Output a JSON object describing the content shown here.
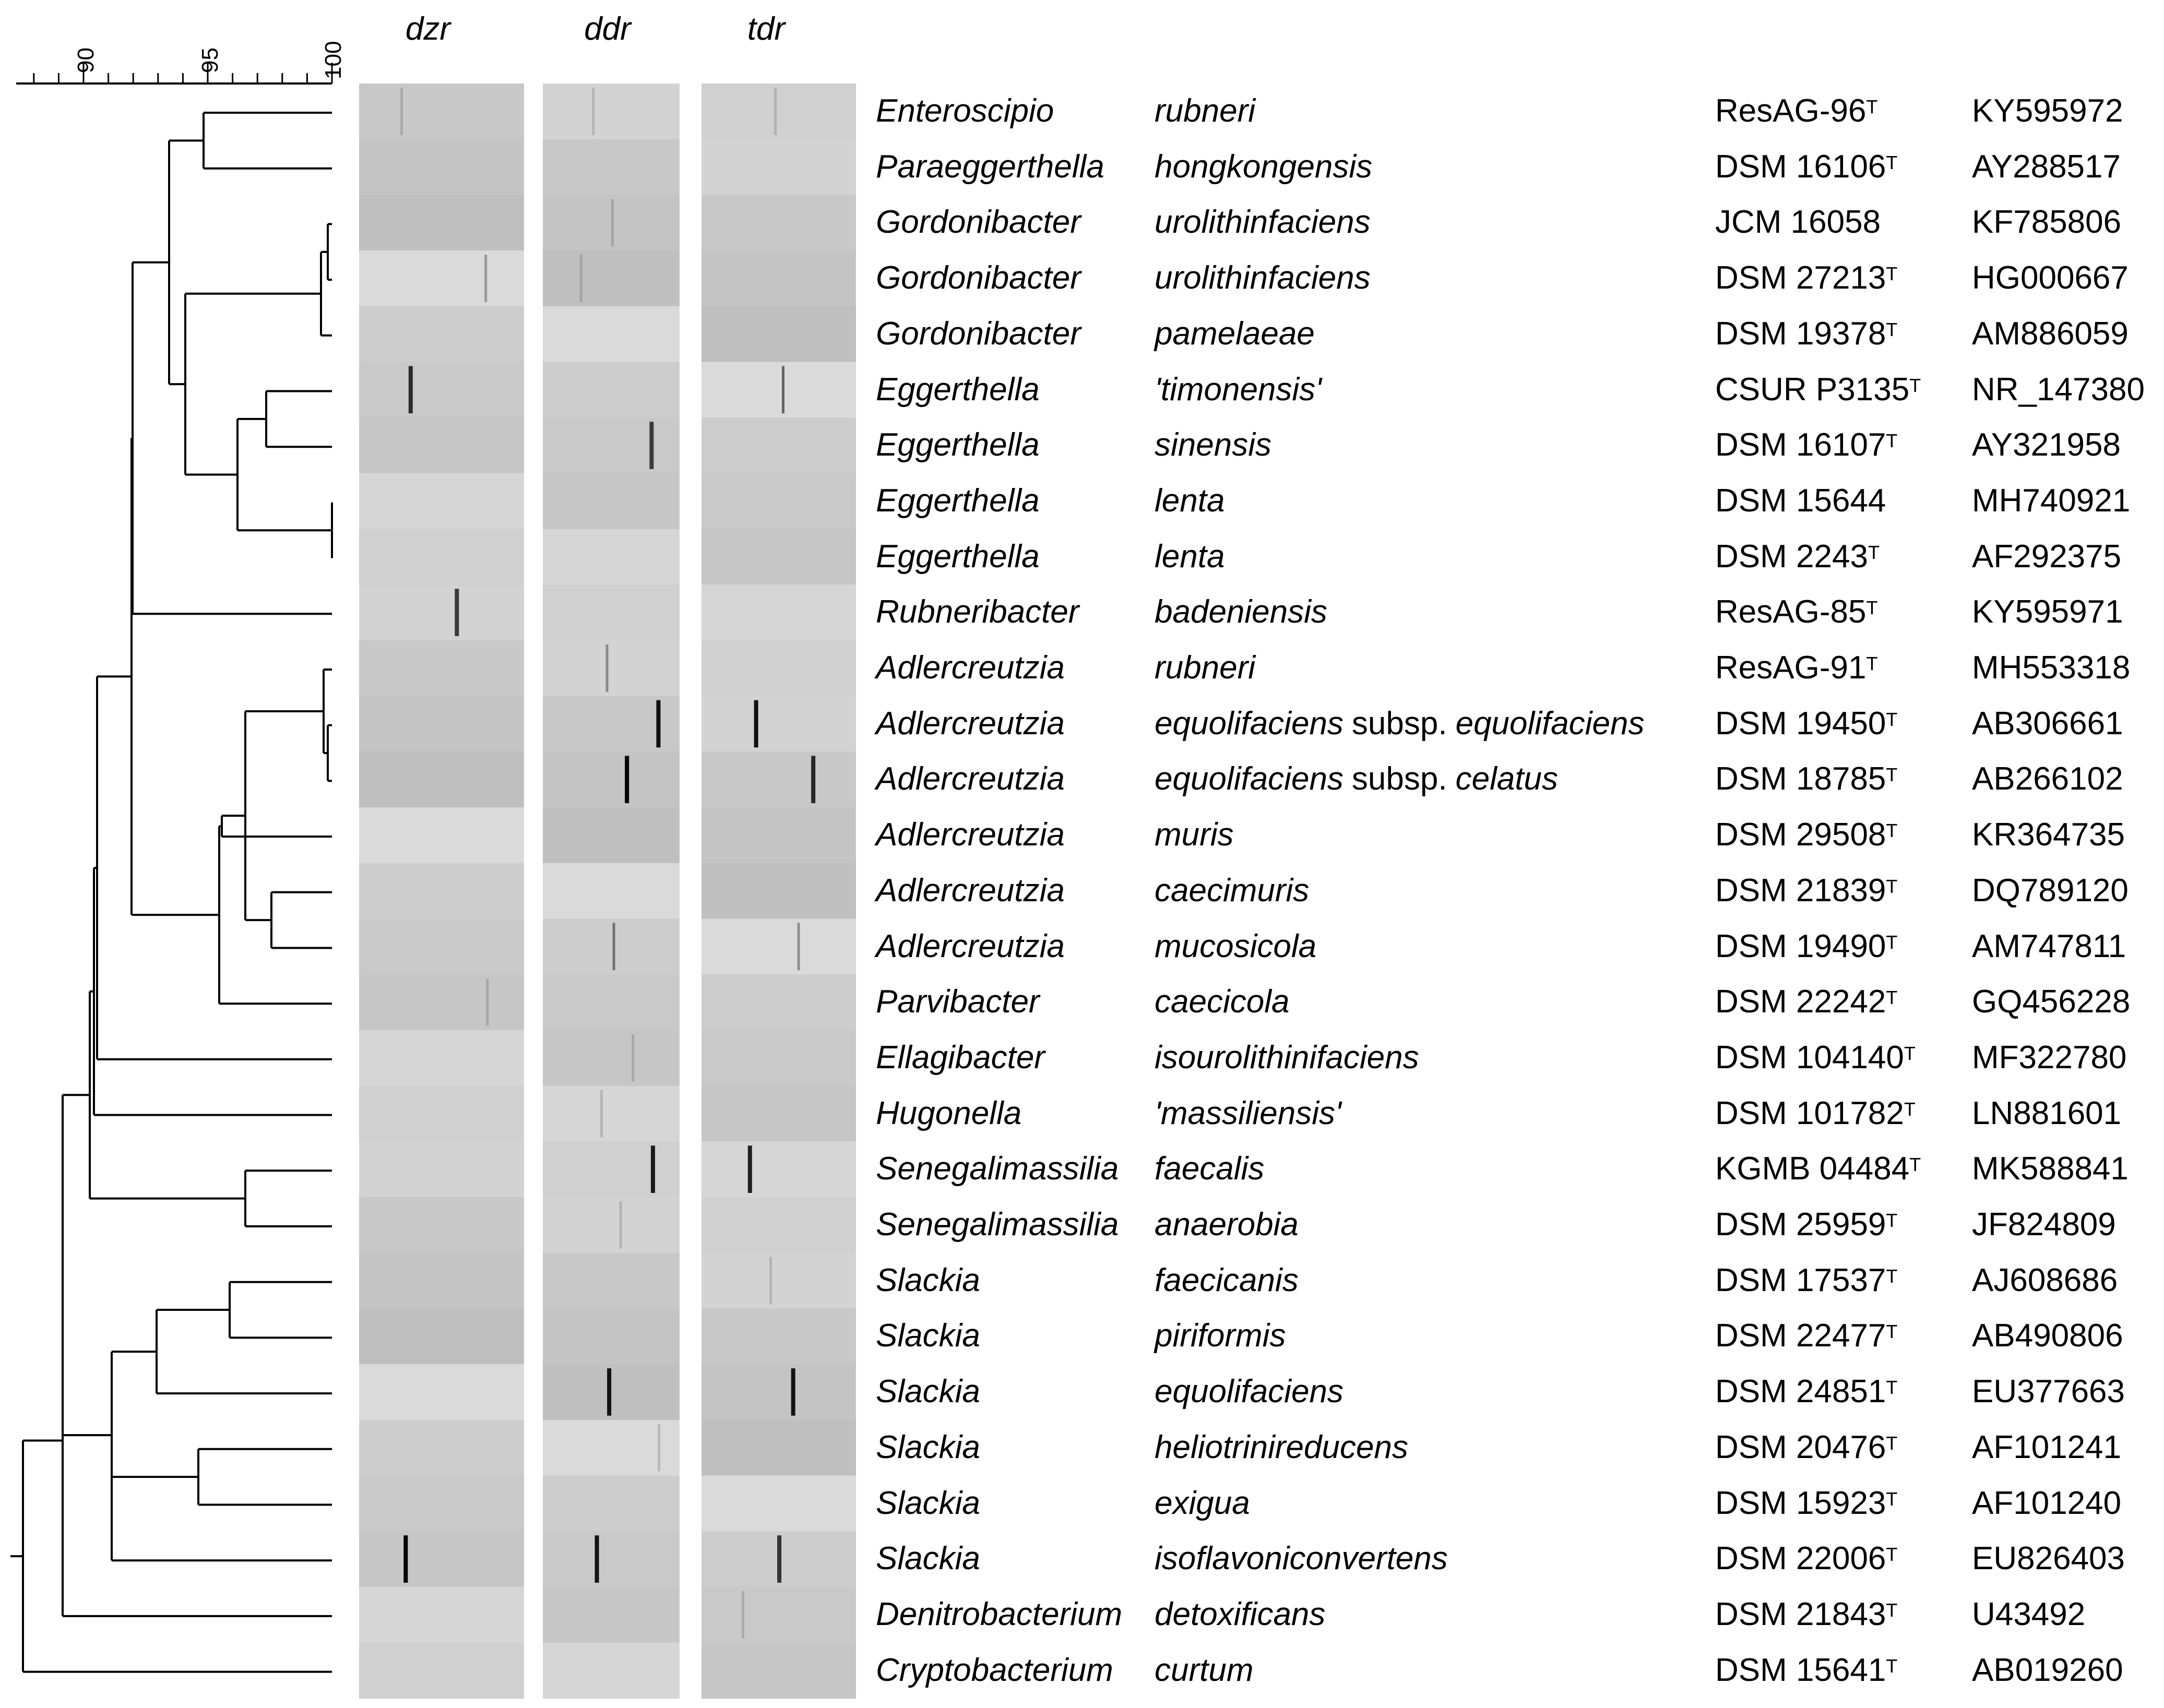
{
  "scale": {
    "ticks": [
      "90",
      "95",
      "100"
    ],
    "range": [
      87.5,
      100
    ]
  },
  "genes": {
    "dzr": "dzr",
    "ddr": "ddr",
    "tdr": "tdr"
  },
  "colors": {
    "line": "#000000",
    "band": "#000000"
  },
  "taxa": [
    {
      "genus": "Enteroscipio",
      "species": "rubneri",
      "subsp_label": "",
      "subsp": "",
      "strain": "ResAG-96",
      "type": "T",
      "acc": "KY595972",
      "dzr": 0.06,
      "ddr": 0.08,
      "tdr": 0.12
    },
    {
      "genus": "Paraeggerthella",
      "species": "hongkongensis",
      "subsp_label": "",
      "subsp": "",
      "strain": "DSM 16106",
      "type": "T",
      "acc": "AY288517",
      "dzr": 0,
      "ddr": 0,
      "tdr": 0
    },
    {
      "genus": "Gordonibacter",
      "species": "urolithinfaciens",
      "subsp_label": "",
      "subsp": "",
      "strain": "JCM 16058",
      "type": "",
      "acc": "KF785806",
      "dzr": 0,
      "ddr": 0.08,
      "tdr": 0
    },
    {
      "genus": "Gordonibacter",
      "species": "urolithinfaciens",
      "subsp_label": "",
      "subsp": "",
      "strain": "DSM 27213",
      "type": "T",
      "acc": "HG000667",
      "dzr": 0.3,
      "ddr": 0.1,
      "tdr": 0
    },
    {
      "genus": "Gordonibacter",
      "species": "pamelaeae",
      "subsp_label": "",
      "subsp": "",
      "strain": "DSM 19378",
      "type": "T",
      "acc": "AM886059",
      "dzr": 0,
      "ddr": 0,
      "tdr": 0
    },
    {
      "genus": "Eggerthella",
      "species": "'timonensis'",
      "subsp_label": "",
      "subsp": "",
      "strain": "CSUR P3135",
      "type": "T",
      "acc": "NR_147380",
      "dzr": 0.78,
      "ddr": 0,
      "tdr": 0.55
    },
    {
      "genus": "Eggerthella",
      "species": "sinensis",
      "subsp_label": "",
      "subsp": "",
      "strain": "DSM 16107",
      "type": "T",
      "acc": "AY321958",
      "dzr": 0,
      "ddr": 0.7,
      "tdr": 0
    },
    {
      "genus": "Eggerthella",
      "species": "lenta",
      "subsp_label": "",
      "subsp": "",
      "strain": "DSM 15644",
      "type": "",
      "acc": "MH740921",
      "dzr": 0,
      "ddr": 0,
      "tdr": 0
    },
    {
      "genus": "Eggerthella",
      "species": "lenta",
      "subsp_label": "",
      "subsp": "",
      "strain": "DSM 2243",
      "type": "T",
      "acc": "AF292375",
      "dzr": 0,
      "ddr": 0,
      "tdr": 0
    },
    {
      "genus": "Rubneribacter",
      "species": "badeniensis",
      "subsp_label": "",
      "subsp": "",
      "strain": "ResAG-85",
      "type": "T",
      "acc": "KY595971",
      "dzr": 0.72,
      "ddr": 0,
      "tdr": 0
    },
    {
      "genus": "Adlercreutzia",
      "species": "rubneri",
      "subsp_label": "",
      "subsp": "",
      "strain": "ResAG-91",
      "type": "T",
      "acc": "MH553318",
      "dzr": 0,
      "ddr": 0.35,
      "tdr": 0
    },
    {
      "genus": "Adlercreutzia",
      "species": "equolifaciens",
      "subsp_label": "subsp.",
      "subsp": "equolifaciens",
      "strain": "DSM 19450",
      "type": "T",
      "acc": "AB306661",
      "dzr": 0,
      "ddr": 0.92,
      "tdr": 0.92
    },
    {
      "genus": "Adlercreutzia",
      "species": "equolifaciens",
      "subsp_label": "subsp.",
      "subsp": "celatus",
      "strain": "DSM 18785",
      "type": "T",
      "acc": "AB266102",
      "dzr": 0,
      "ddr": 0.98,
      "tdr": 0.8
    },
    {
      "genus": "Adlercreutzia",
      "species": "muris",
      "subsp_label": "",
      "subsp": "",
      "strain": "DSM 29508",
      "type": "T",
      "acc": "KR364735",
      "dzr": 0,
      "ddr": 0,
      "tdr": 0
    },
    {
      "genus": "Adlercreutzia",
      "species": "caecimuris",
      "subsp_label": "",
      "subsp": "",
      "strain": "DSM 21839",
      "type": "T",
      "acc": "DQ789120",
      "dzr": 0,
      "ddr": 0,
      "tdr": 0
    },
    {
      "genus": "Adlercreutzia",
      "species": "mucosicola",
      "subsp_label": "",
      "subsp": "",
      "strain": "DSM 19490",
      "type": "T",
      "acc": "AM747811",
      "dzr": 0,
      "ddr": 0.45,
      "tdr": 0.35
    },
    {
      "genus": "Parvibacter",
      "species": "caecicola",
      "subsp_label": "",
      "subsp": "",
      "strain": "DSM 22242",
      "type": "T",
      "acc": "GQ456228",
      "dzr": 0.1,
      "ddr": 0,
      "tdr": 0
    },
    {
      "genus": "Ellagibacter",
      "species": "isourolithinifaciens",
      "subsp_label": "",
      "subsp": "",
      "strain": "DSM 104140",
      "type": "T",
      "acc": "MF322780",
      "dzr": 0,
      "ddr": 0.12,
      "tdr": 0
    },
    {
      "genus": "Hugonella",
      "species": "'massiliensis'",
      "subsp_label": "",
      "subsp": "",
      "strain": "DSM 101782",
      "type": "T",
      "acc": "LN881601",
      "dzr": 0,
      "ddr": 0.12,
      "tdr": 0
    },
    {
      "genus": "Senegalimassilia",
      "species": "faecalis",
      "subsp_label": "",
      "subsp": "",
      "strain": "KGMB 04484",
      "type": "T",
      "acc": "MK588841",
      "dzr": 0,
      "ddr": 0.88,
      "tdr": 0.85
    },
    {
      "genus": "Senegalimassilia",
      "species": "anaerobia",
      "subsp_label": "",
      "subsp": "",
      "strain": "DSM 25959",
      "type": "T",
      "acc": "JF824809",
      "dzr": 0,
      "ddr": 0.1,
      "tdr": 0
    },
    {
      "genus": "Slackia",
      "species": "faecicanis",
      "subsp_label": "",
      "subsp": "",
      "strain": "DSM 17537",
      "type": "T",
      "acc": "AJ608686",
      "dzr": 0,
      "ddr": 0,
      "tdr": 0.15
    },
    {
      "genus": "Slackia",
      "species": "piriformis",
      "subsp_label": "",
      "subsp": "",
      "strain": "DSM 22477",
      "type": "T",
      "acc": "AB490806",
      "dzr": 0,
      "ddr": 0,
      "tdr": 0
    },
    {
      "genus": "Slackia",
      "species": "equolifaciens",
      "subsp_label": "",
      "subsp": "",
      "strain": "DSM 24851",
      "type": "T",
      "acc": "EU377663",
      "dzr": 0,
      "ddr": 0.9,
      "tdr": 0.9
    },
    {
      "genus": "Slackia",
      "species": "heliotrinireducens",
      "subsp_label": "",
      "subsp": "",
      "strain": "DSM 20476",
      "type": "T",
      "acc": "AF101241",
      "dzr": 0,
      "ddr": 0.12,
      "tdr": 0
    },
    {
      "genus": "Slackia",
      "species": "exigua",
      "subsp_label": "",
      "subsp": "",
      "strain": "DSM 15923",
      "type": "T",
      "acc": "AF101240",
      "dzr": 0,
      "ddr": 0,
      "tdr": 0
    },
    {
      "genus": "Slackia",
      "species": "isoflavoniconvertens",
      "subsp_label": "",
      "subsp": "",
      "strain": "DSM 22006",
      "type": "T",
      "acc": "EU826403",
      "dzr": 1.0,
      "ddr": 0.9,
      "tdr": 0.75
    },
    {
      "genus": "Denitrobacterium",
      "species": "detoxificans",
      "subsp_label": "",
      "subsp": "",
      "strain": "DSM 21843",
      "type": "T",
      "acc": "U43492",
      "dzr": 0,
      "ddr": 0,
      "tdr": 0.15
    },
    {
      "genus": "Cryptobacterium",
      "species": "curtum",
      "subsp_label": "",
      "subsp": "",
      "strain": "DSM 15641",
      "type": "T",
      "acc": "AB019260",
      "dzr": 0,
      "ddr": 0,
      "tdr": 0
    }
  ]
}
